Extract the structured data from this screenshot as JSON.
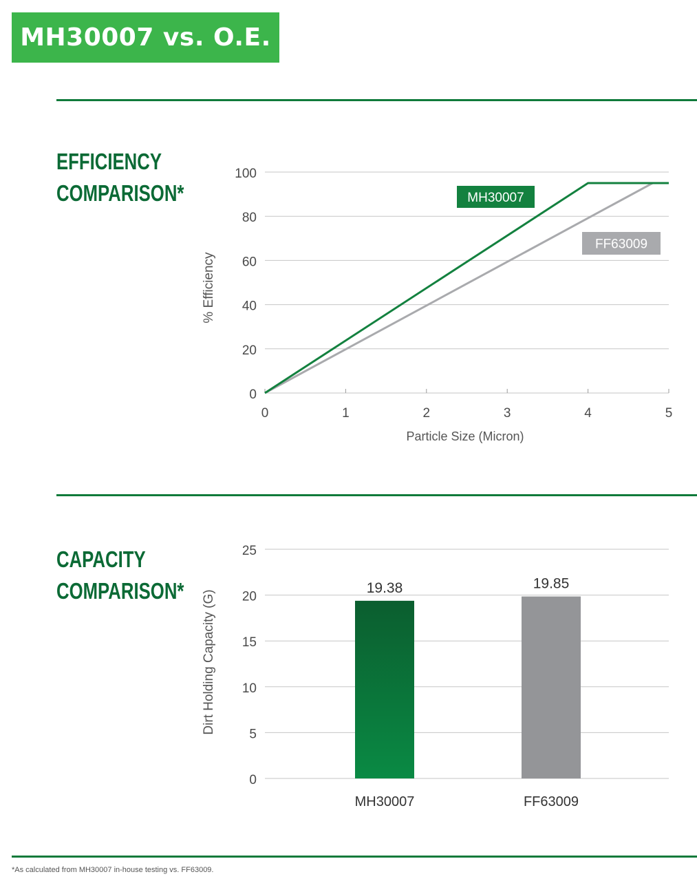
{
  "header": {
    "title": "MH30007 vs. O.E."
  },
  "sections": {
    "efficiency": {
      "heading_line1": "EFFICIENCY",
      "heading_line2": "COMPARISON*"
    },
    "capacity": {
      "heading_line1": "CAPACITY",
      "heading_line2": "COMPARISON*"
    }
  },
  "colors": {
    "brand_green": "#3cb54b",
    "dark_green": "#0b6a35",
    "line_green": "#13813f",
    "gray": "#a9aaad",
    "bar_gray": "#949598"
  },
  "chart_data": [
    {
      "type": "line",
      "xlabel": "Particle Size (Micron)",
      "ylabel": "% Efficiency",
      "xlim": [
        0,
        5
      ],
      "ylim": [
        0,
        100
      ],
      "xticks": [
        0,
        1,
        2,
        3,
        4,
        5
      ],
      "yticks": [
        0,
        20,
        40,
        60,
        80,
        100
      ],
      "grid": true,
      "series": [
        {
          "name": "MH30007",
          "x": [
            0,
            4,
            5
          ],
          "y": [
            0,
            95,
            95
          ]
        },
        {
          "name": "FF63009",
          "x": [
            0,
            4.8,
            5
          ],
          "y": [
            0,
            95,
            95
          ]
        }
      ]
    },
    {
      "type": "bar",
      "ylabel": "Dirt Holding Capacity (G)",
      "ylim": [
        0,
        25
      ],
      "yticks": [
        0,
        5,
        10,
        15,
        20,
        25
      ],
      "grid": true,
      "categories": [
        "MH30007",
        "FF63009"
      ],
      "values": [
        19.38,
        19.85
      ],
      "value_labels": [
        "19.38",
        "19.85"
      ]
    }
  ],
  "footnote": "*As calculated from MH30007 in-house testing vs. FF63009."
}
